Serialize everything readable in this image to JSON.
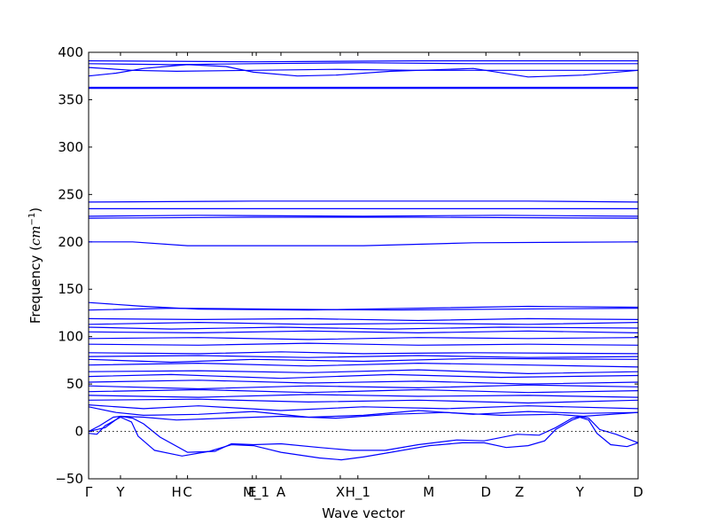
{
  "chart_data": {
    "type": "line",
    "title": "",
    "xlabel": "Wave vector",
    "ylabel_prefix": "Frequency (",
    "ylabel_unit": "cm",
    "ylabel_exp": "−1",
    "ylabel_suffix": ")",
    "ylim": [
      -50,
      400
    ],
    "yticks": [
      -50,
      0,
      50,
      100,
      150,
      200,
      250,
      300,
      350,
      400
    ],
    "xlim": [
      0,
      1
    ],
    "kpoints": [
      {
        "label": "Γ",
        "x": 0.0
      },
      {
        "label": "Y",
        "x": 0.058
      },
      {
        "label": "H",
        "x": 0.16
      },
      {
        "label": "C",
        "x": 0.18
      },
      {
        "label": "E",
        "x": 0.298
      },
      {
        "label": "M_1",
        "x": 0.305
      },
      {
        "label": "A",
        "x": 0.35
      },
      {
        "label": "X",
        "x": 0.458
      },
      {
        "label": "H_1",
        "x": 0.49
      },
      {
        "label": "M",
        "x": 0.619
      },
      {
        "label": "D",
        "x": 0.723
      },
      {
        "label": "Z",
        "x": 0.784
      },
      {
        "label": "Y",
        "x": 0.894
      },
      {
        "label": "D",
        "x": 1.0
      }
    ],
    "zero_line": 0,
    "series": [
      {
        "values": [
          [
            0,
            391
          ],
          [
            0.3,
            390
          ],
          [
            0.6,
            391
          ],
          [
            1,
            391
          ]
        ]
      },
      {
        "values": [
          [
            0,
            388
          ],
          [
            0.15,
            387
          ],
          [
            0.3,
            388
          ],
          [
            0.5,
            389
          ],
          [
            0.7,
            388
          ],
          [
            1,
            388
          ]
        ]
      },
      {
        "values": [
          [
            0,
            384
          ],
          [
            0.08,
            381
          ],
          [
            0.16,
            380
          ],
          [
            0.3,
            381
          ],
          [
            0.45,
            382
          ],
          [
            0.6,
            381
          ],
          [
            0.75,
            381
          ],
          [
            1,
            381
          ]
        ]
      },
      {
        "values": [
          [
            0,
            375
          ],
          [
            0.05,
            378
          ],
          [
            0.1,
            383
          ],
          [
            0.18,
            387
          ],
          [
            0.25,
            385
          ],
          [
            0.3,
            379
          ],
          [
            0.38,
            375
          ],
          [
            0.45,
            376
          ],
          [
            0.55,
            380
          ],
          [
            0.7,
            383
          ],
          [
            0.8,
            374
          ],
          [
            0.9,
            376
          ],
          [
            1,
            381
          ]
        ]
      },
      {
        "values": [
          [
            0,
            363
          ],
          [
            0.3,
            363
          ],
          [
            0.6,
            363
          ],
          [
            1,
            363
          ]
        ]
      },
      {
        "values": [
          [
            0,
            362
          ],
          [
            0.35,
            362
          ],
          [
            0.7,
            362
          ],
          [
            1,
            362
          ]
        ]
      },
      {
        "values": [
          [
            0,
            242
          ],
          [
            0.3,
            243
          ],
          [
            0.55,
            243
          ],
          [
            0.8,
            243
          ],
          [
            1,
            242
          ]
        ]
      },
      {
        "values": [
          [
            0,
            235
          ],
          [
            0.3,
            235
          ],
          [
            0.6,
            235
          ],
          [
            1,
            235
          ]
        ]
      },
      {
        "values": [
          [
            0,
            227
          ],
          [
            0.2,
            228
          ],
          [
            0.5,
            227
          ],
          [
            0.75,
            228
          ],
          [
            1,
            227
          ]
        ]
      },
      {
        "values": [
          [
            0,
            225
          ],
          [
            0.3,
            226
          ],
          [
            0.6,
            226
          ],
          [
            1,
            225
          ]
        ]
      },
      {
        "values": [
          [
            0,
            200
          ],
          [
            0.08,
            200
          ],
          [
            0.18,
            196
          ],
          [
            0.5,
            196
          ],
          [
            0.7,
            199
          ],
          [
            1,
            200
          ]
        ]
      },
      {
        "values": [
          [
            0,
            136
          ],
          [
            0.1,
            132
          ],
          [
            0.2,
            129
          ],
          [
            0.4,
            128
          ],
          [
            0.6,
            130
          ],
          [
            0.8,
            132
          ],
          [
            1,
            131
          ]
        ]
      },
      {
        "values": [
          [
            0,
            128
          ],
          [
            0.15,
            130
          ],
          [
            0.35,
            129
          ],
          [
            0.55,
            128
          ],
          [
            0.75,
            129
          ],
          [
            1,
            130
          ]
        ]
      },
      {
        "values": [
          [
            0,
            119
          ],
          [
            0.2,
            118
          ],
          [
            0.4,
            119
          ],
          [
            0.6,
            117
          ],
          [
            0.8,
            119
          ],
          [
            1,
            118
          ]
        ]
      },
      {
        "values": [
          [
            0,
            113
          ],
          [
            0.2,
            115
          ],
          [
            0.4,
            113
          ],
          [
            0.6,
            114
          ],
          [
            0.8,
            113
          ],
          [
            1,
            115
          ]
        ]
      },
      {
        "values": [
          [
            0,
            110
          ],
          [
            0.15,
            108
          ],
          [
            0.35,
            110
          ],
          [
            0.55,
            108
          ],
          [
            0.75,
            110
          ],
          [
            1,
            109
          ]
        ]
      },
      {
        "values": [
          [
            0,
            105
          ],
          [
            0.2,
            104
          ],
          [
            0.4,
            106
          ],
          [
            0.6,
            104
          ],
          [
            0.8,
            106
          ],
          [
            1,
            104
          ]
        ]
      },
      {
        "values": [
          [
            0,
            98
          ],
          [
            0.2,
            99
          ],
          [
            0.4,
            97
          ],
          [
            0.6,
            99
          ],
          [
            0.8,
            98
          ],
          [
            1,
            99
          ]
        ]
      },
      {
        "values": [
          [
            0,
            92
          ],
          [
            0.2,
            91
          ],
          [
            0.4,
            93
          ],
          [
            0.6,
            91
          ],
          [
            0.8,
            92
          ],
          [
            1,
            91
          ]
        ]
      },
      {
        "values": [
          [
            0,
            83
          ],
          [
            0.2,
            82
          ],
          [
            0.35,
            84
          ],
          [
            0.5,
            82
          ],
          [
            0.7,
            83
          ],
          [
            1,
            82
          ]
        ]
      },
      {
        "values": [
          [
            0,
            79
          ],
          [
            0.2,
            80
          ],
          [
            0.4,
            78
          ],
          [
            0.6,
            80
          ],
          [
            0.8,
            78
          ],
          [
            1,
            79
          ]
        ]
      },
      {
        "values": [
          [
            0,
            76
          ],
          [
            0.15,
            73
          ],
          [
            0.3,
            76
          ],
          [
            0.5,
            74
          ],
          [
            0.7,
            77
          ],
          [
            1,
            76
          ]
        ]
      },
      {
        "values": [
          [
            0,
            70
          ],
          [
            0.2,
            72
          ],
          [
            0.4,
            69
          ],
          [
            0.6,
            72
          ],
          [
            0.8,
            70
          ],
          [
            1,
            68
          ]
        ]
      },
      {
        "values": [
          [
            0,
            63
          ],
          [
            0.2,
            64
          ],
          [
            0.4,
            62
          ],
          [
            0.6,
            65
          ],
          [
            0.8,
            61
          ],
          [
            1,
            63
          ]
        ]
      },
      {
        "values": [
          [
            0,
            58
          ],
          [
            0.15,
            60
          ],
          [
            0.35,
            56
          ],
          [
            0.55,
            60
          ],
          [
            0.75,
            57
          ],
          [
            1,
            59
          ]
        ]
      },
      {
        "values": [
          [
            0,
            52
          ],
          [
            0.2,
            54
          ],
          [
            0.4,
            51
          ],
          [
            0.6,
            53
          ],
          [
            0.8,
            50
          ],
          [
            1,
            52
          ]
        ]
      },
      {
        "values": [
          [
            0,
            48
          ],
          [
            0.2,
            45
          ],
          [
            0.4,
            48
          ],
          [
            0.6,
            46
          ],
          [
            0.8,
            49
          ],
          [
            1,
            47
          ]
        ]
      },
      {
        "values": [
          [
            0,
            42
          ],
          [
            0.2,
            44
          ],
          [
            0.4,
            41
          ],
          [
            0.6,
            44
          ],
          [
            0.8,
            41
          ],
          [
            1,
            43
          ]
        ]
      },
      {
        "values": [
          [
            0,
            38
          ],
          [
            0.2,
            36
          ],
          [
            0.4,
            39
          ],
          [
            0.6,
            37
          ],
          [
            0.8,
            38
          ],
          [
            1,
            36
          ]
        ]
      },
      {
        "values": [
          [
            0,
            33
          ],
          [
            0.2,
            34
          ],
          [
            0.4,
            31
          ],
          [
            0.6,
            33
          ],
          [
            0.8,
            30
          ],
          [
            1,
            33
          ]
        ]
      },
      {
        "values": [
          [
            0,
            28
          ],
          [
            0.1,
            24
          ],
          [
            0.2,
            27
          ],
          [
            0.35,
            22
          ],
          [
            0.5,
            26
          ],
          [
            0.65,
            24
          ],
          [
            0.8,
            27
          ],
          [
            1,
            24
          ]
        ]
      },
      {
        "values": [
          [
            0,
            26
          ],
          [
            0.05,
            20
          ],
          [
            0.1,
            17
          ],
          [
            0.2,
            18
          ],
          [
            0.3,
            21
          ],
          [
            0.4,
            15
          ],
          [
            0.5,
            17
          ],
          [
            0.6,
            22
          ],
          [
            0.7,
            18
          ],
          [
            0.8,
            21
          ],
          [
            0.9,
            19
          ],
          [
            1,
            20
          ]
        ]
      },
      {
        "values": [
          [
            0,
            0
          ],
          [
            0.03,
            4
          ],
          [
            0.058,
            16
          ],
          [
            0.1,
            15
          ],
          [
            0.16,
            12
          ],
          [
            0.25,
            14
          ],
          [
            0.35,
            16
          ],
          [
            0.45,
            14
          ],
          [
            0.55,
            18
          ],
          [
            0.65,
            20
          ],
          [
            0.75,
            17
          ],
          [
            0.85,
            18
          ],
          [
            0.9,
            16
          ],
          [
            1,
            20
          ]
        ]
      },
      {
        "values": [
          [
            0,
            -2
          ],
          [
            0.015,
            -3
          ],
          [
            0.03,
            6
          ],
          [
            0.058,
            15
          ],
          [
            0.078,
            10
          ],
          [
            0.09,
            -5
          ],
          [
            0.12,
            -20
          ],
          [
            0.17,
            -26
          ],
          [
            0.22,
            -21
          ],
          [
            0.26,
            -14
          ],
          [
            0.3,
            -15
          ],
          [
            0.35,
            -22
          ],
          [
            0.42,
            -28
          ],
          [
            0.46,
            -30
          ],
          [
            0.5,
            -27
          ],
          [
            0.55,
            -22
          ],
          [
            0.62,
            -15
          ],
          [
            0.68,
            -12
          ],
          [
            0.72,
            -12
          ],
          [
            0.76,
            -17
          ],
          [
            0.8,
            -15
          ],
          [
            0.83,
            -10
          ],
          [
            0.85,
            2
          ],
          [
            0.88,
            12
          ],
          [
            0.894,
            15
          ],
          [
            0.91,
            12
          ],
          [
            0.925,
            -2
          ],
          [
            0.95,
            -14
          ],
          [
            0.98,
            -16
          ],
          [
            1,
            -12
          ]
        ]
      },
      {
        "values": [
          [
            0,
            0
          ],
          [
            0.02,
            6
          ],
          [
            0.045,
            15
          ],
          [
            0.058,
            16
          ],
          [
            0.08,
            14
          ],
          [
            0.1,
            8
          ],
          [
            0.13,
            -6
          ],
          [
            0.18,
            -22
          ],
          [
            0.23,
            -21
          ],
          [
            0.26,
            -13
          ],
          [
            0.3,
            -14
          ],
          [
            0.35,
            -13
          ],
          [
            0.42,
            -17
          ],
          [
            0.48,
            -20
          ],
          [
            0.54,
            -20
          ],
          [
            0.6,
            -14
          ],
          [
            0.67,
            -9
          ],
          [
            0.72,
            -10
          ],
          [
            0.78,
            -3
          ],
          [
            0.82,
            -4
          ],
          [
            0.85,
            4
          ],
          [
            0.88,
            14
          ],
          [
            0.894,
            16
          ],
          [
            0.91,
            14
          ],
          [
            0.93,
            2
          ],
          [
            0.96,
            -3
          ],
          [
            1,
            -12
          ]
        ]
      }
    ]
  }
}
